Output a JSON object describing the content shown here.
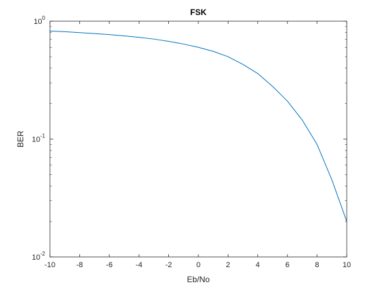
{
  "chart_data": {
    "type": "line",
    "title": "FSK",
    "xlabel": "Eb/No",
    "ylabel": "BER",
    "xlim": [
      -10,
      10
    ],
    "ylim": [
      0.01,
      1
    ],
    "yscale": "log",
    "grid": false,
    "x_ticks": [
      -10,
      -8,
      -6,
      -4,
      -2,
      0,
      2,
      4,
      6,
      8,
      10
    ],
    "y_ticks": [
      {
        "value": 0.01,
        "base": "10",
        "exp": "-2"
      },
      {
        "value": 0.1,
        "base": "10",
        "exp": "-1"
      },
      {
        "value": 1,
        "base": "10",
        "exp": "0"
      }
    ],
    "series": [
      {
        "color": "#0072BD",
        "x": [
          -10,
          -9,
          -8,
          -7,
          -6,
          -5,
          -4,
          -3,
          -2,
          -1,
          0,
          1,
          2,
          3,
          4,
          5,
          6,
          7,
          8,
          9,
          10
        ],
        "y": [
          0.825,
          0.815,
          0.8,
          0.785,
          0.77,
          0.75,
          0.73,
          0.705,
          0.675,
          0.64,
          0.6,
          0.555,
          0.5,
          0.43,
          0.36,
          0.28,
          0.21,
          0.145,
          0.09,
          0.045,
          0.02
        ]
      }
    ]
  }
}
